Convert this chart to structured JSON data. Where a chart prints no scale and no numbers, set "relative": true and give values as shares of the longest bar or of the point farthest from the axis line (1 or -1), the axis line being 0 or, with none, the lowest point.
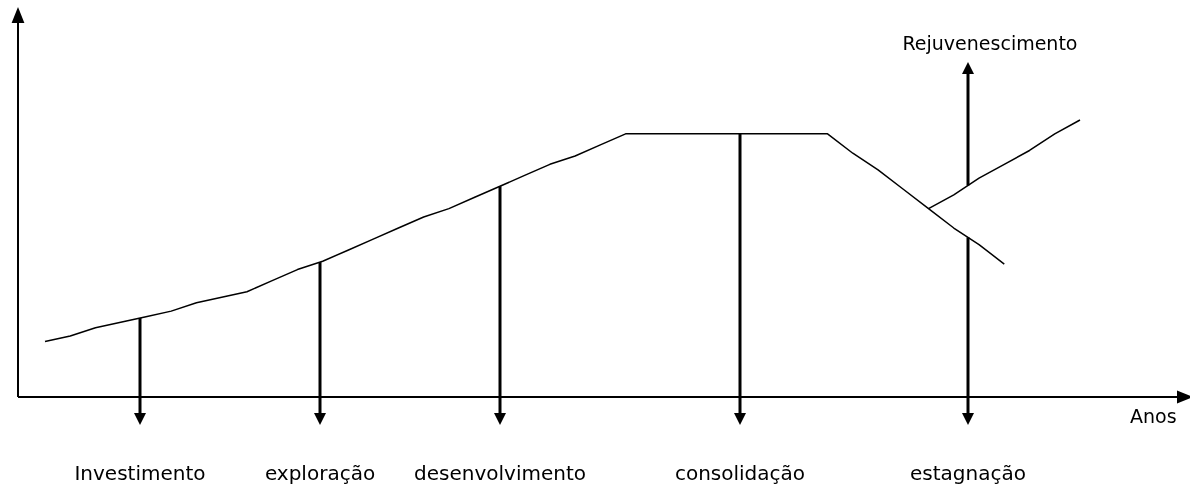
{
  "chart_data": {
    "type": "line",
    "xlabel": "Anos",
    "relative": true,
    "marker": "none",
    "line_style": "solid",
    "categories": [
      null,
      null,
      null,
      null,
      null,
      null,
      null,
      null,
      null,
      null,
      null,
      null,
      null,
      null,
      null,
      null,
      null,
      null,
      null,
      null,
      null,
      null,
      null,
      null,
      null,
      null,
      null,
      null,
      null,
      null,
      null,
      null,
      null,
      null,
      null,
      null,
      null,
      null,
      null,
      null,
      null,
      null
    ],
    "series": [
      {
        "color": "#000000",
        "values": [
          0.2,
          0.22,
          0.25,
          0.27,
          0.29,
          0.31,
          0.34,
          0.36,
          0.38,
          0.42,
          0.46,
          0.49,
          0.53,
          0.57,
          0.61,
          0.65,
          0.68,
          0.72,
          0.76,
          0.8,
          0.84,
          0.87,
          0.91,
          0.95,
          0.95,
          0.95,
          0.95,
          0.95,
          0.95,
          0.95,
          0.95,
          0.95,
          0.88,
          0.82,
          0.75,
          0.68,
          0.61,
          0.55,
          0.48,
          null,
          null,
          null
        ]
      },
      {
        "color": "#000000",
        "values": [
          null,
          null,
          null,
          null,
          null,
          null,
          null,
          null,
          null,
          null,
          null,
          null,
          null,
          null,
          null,
          null,
          null,
          null,
          null,
          null,
          null,
          null,
          null,
          null,
          null,
          null,
          null,
          null,
          null,
          null,
          null,
          null,
          null,
          null,
          null,
          0.68,
          0.73,
          0.79,
          0.84,
          0.89,
          0.95,
          1
        ]
      }
    ],
    "annotations": [
      "Investimento",
      "exploração",
      "desenvolvimento",
      "consolidação",
      "estagnação",
      "Rejuvenescimento"
    ]
  }
}
